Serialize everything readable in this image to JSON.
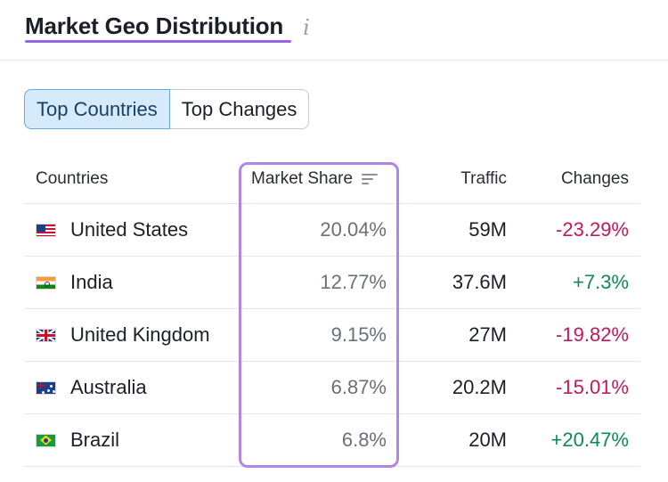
{
  "header": {
    "title": "Market Geo Distribution",
    "info_icon": "info-icon"
  },
  "tabs": [
    {
      "label": "Top Countries",
      "active": true
    },
    {
      "label": "Top Changes",
      "active": false
    }
  ],
  "table": {
    "columns": {
      "country": "Countries",
      "share": "Market Share",
      "traffic": "Traffic",
      "change": "Changes"
    },
    "rows": [
      {
        "flag": "us-flag-icon",
        "country": "United States",
        "share": "20.04%",
        "traffic": "59M",
        "change": "-23.29%"
      },
      {
        "flag": "india-flag-icon",
        "country": "India",
        "share": "12.77%",
        "traffic": "37.6M",
        "change": "+7.3%"
      },
      {
        "flag": "uk-flag-icon",
        "country": "United Kingdom",
        "share": "9.15%",
        "traffic": "27M",
        "change": "-19.82%"
      },
      {
        "flag": "australia-flag-icon",
        "country": "Australia",
        "share": "6.87%",
        "traffic": "20.2M",
        "change": "-15.01%"
      },
      {
        "flag": "brazil-flag-icon",
        "country": "Brazil",
        "share": "6.8%",
        "traffic": "20M",
        "change": "+20.47%"
      }
    ]
  },
  "colors": {
    "accent_purple": "#9b64e6",
    "active_tab_bg": "#d5ebfb",
    "negative": "#c2185b",
    "positive": "#0b8a5a"
  }
}
